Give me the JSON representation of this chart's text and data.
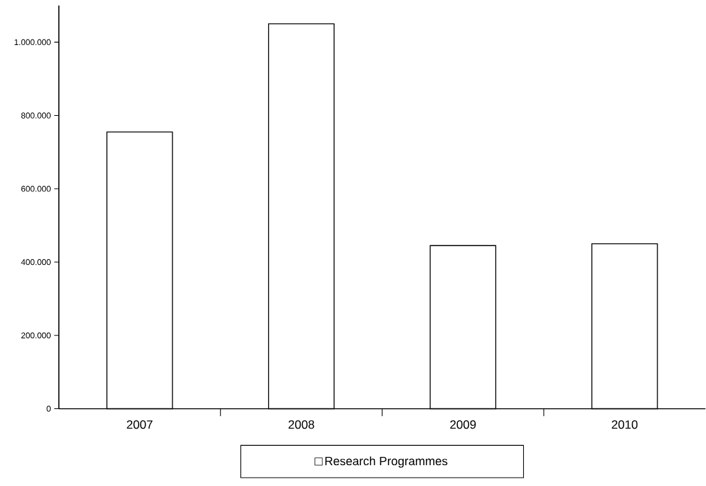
{
  "chart_data": {
    "type": "bar",
    "categories": [
      "2007",
      "2008",
      "2009",
      "2010"
    ],
    "series": [
      {
        "name": "Research Programmes",
        "color": "#ffffff",
        "values": [
          755000,
          1050000,
          445000,
          450000
        ]
      }
    ],
    "ylim": [
      0,
      1100000
    ],
    "yticks": [
      {
        "value": 0,
        "label": "0"
      },
      {
        "value": 200000,
        "label": "200.000"
      },
      {
        "value": 400000,
        "label": "400.000"
      },
      {
        "value": 600000,
        "label": "600.000"
      },
      {
        "value": 800000,
        "label": "800.000"
      },
      {
        "value": 1000000,
        "label": "1.000.000"
      }
    ],
    "grid": false,
    "legend": "bottom"
  }
}
